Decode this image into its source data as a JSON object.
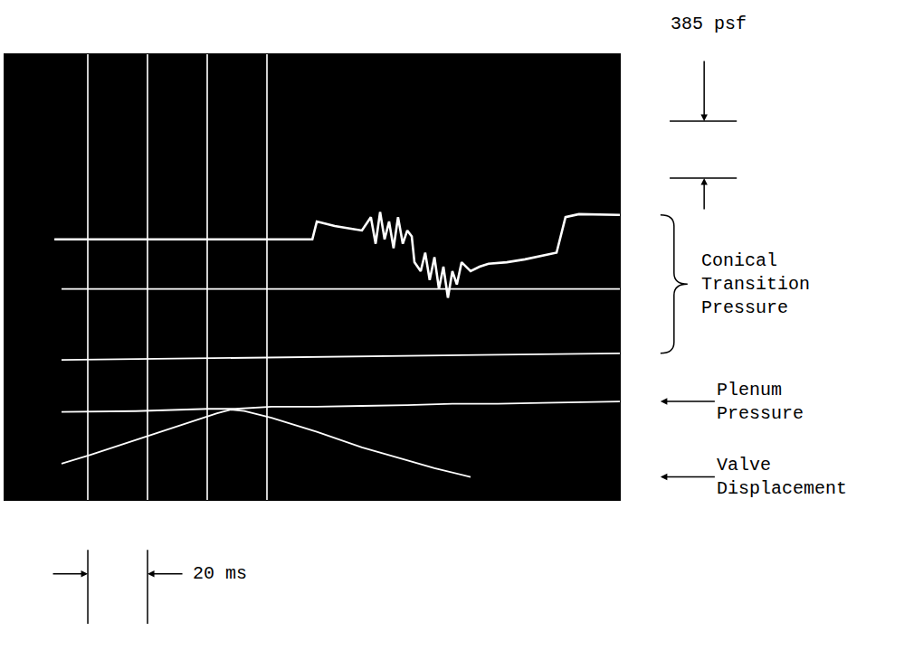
{
  "chart_data": {
    "type": "line",
    "xlim": [
      -27.9,
      178.2
    ],
    "ylim": [
      0,
      3010
    ],
    "xticks": [
      0,
      20,
      40,
      60
    ],
    "grid": true,
    "tick_labels": false,
    "series": [
      {
        "name": "Conical Transition Pressure",
        "color": "#ffffff",
        "x": [
          -11.2,
          75.2,
          76.7,
          82.7,
          91.8,
          94.8,
          96.4,
          97.9,
          99.4,
          100.9,
          102.4,
          103.9,
          105.5,
          107.0,
          108.5,
          109.4,
          111.5,
          113.0,
          114.5,
          116.1,
          117.6,
          119.1,
          120.6,
          122.1,
          123.6,
          125.2,
          128.2,
          131.2,
          134.2,
          140.3,
          146.4,
          152.4,
          157.0,
          160.0,
          164.5,
          178.2
        ],
        "values": [
          1760,
          1760,
          1880,
          1850,
          1820,
          1910,
          1730,
          1945,
          1760,
          1880,
          1700,
          1910,
          1730,
          1820,
          1780,
          1605,
          1545,
          1670,
          1485,
          1640,
          1425,
          1575,
          1365,
          1545,
          1455,
          1605,
          1545,
          1575,
          1595,
          1605,
          1625,
          1650,
          1670,
          1910,
          1930,
          1925
        ]
      },
      {
        "name": "Conical Transition Pressure",
        "color": "#ffffff",
        "x": [
          -8.8,
          178.2
        ],
        "values": [
          1425,
          1425
        ]
      },
      {
        "name": "Conical Transition Pressure",
        "color": "#ffffff",
        "x": [
          -8.8,
          178.2
        ],
        "values": [
          945,
          990
        ]
      },
      {
        "name": "Plenum Pressure",
        "color": "#ffffff",
        "x": [
          -8.8,
          16.1,
          40.3,
          49.4,
          61.5,
          76.7,
          91.8,
          107.0,
          122.1,
          137.3,
          152.4,
          178.2
        ],
        "values": [
          595,
          600,
          615,
          615,
          630,
          630,
          635,
          640,
          650,
          650,
          655,
          665
        ]
      },
      {
        "name": "Valve Displacement",
        "color": "#ffffff",
        "x": [
          -8.8,
          0.9,
          16.1,
          31.2,
          43.3,
          47.9,
          52.4,
          61.5,
          76.7,
          91.8,
          107.0,
          116.1,
          128.2
        ],
        "values": [
          245,
          305,
          405,
          505,
          585,
          610,
          600,
          555,
          460,
          355,
          265,
          215,
          155
        ]
      }
    ],
    "scale_bars": [
      {
        "label": "385 psf",
        "value": 385,
        "axis": "y"
      },
      {
        "label": "20 ms",
        "value": 20,
        "axis": "x"
      }
    ]
  }
}
